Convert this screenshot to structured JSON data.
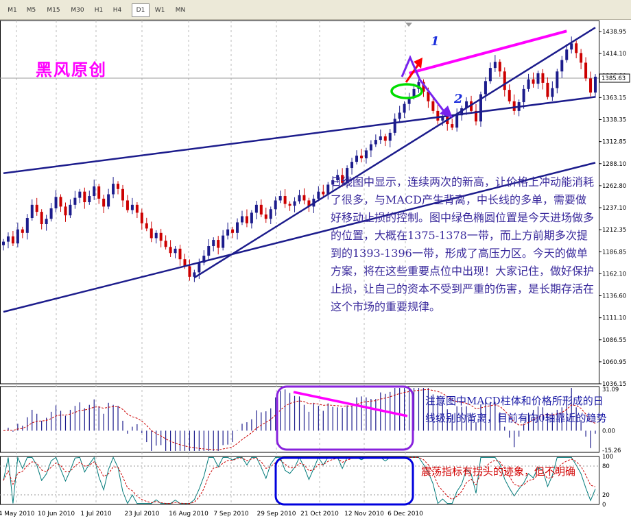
{
  "toolbar": {
    "timeframes": [
      "M1",
      "M5",
      "M15",
      "M30",
      "H1",
      "H4",
      "D1",
      "W1",
      "MN"
    ],
    "active": "D1"
  },
  "title_logo": "黑风原创",
  "annotations": {
    "wave_1": "1",
    "wave_2": "2",
    "main_note": "日线图中显示，连续两次的新高，让价格上冲动能消耗了很多，与MACD产生背离，中长线的多单，需要做好移动止损的控制。图中绿色椭圆位置是今天进场做多的位置，大概在1375-1378一带，而上方前期多次提到的1393-1396一带，形成了高压力区。今天的做单方案，将在这些重要点位中出现！大家记住，做好保护止损，让自己的资本不受到严重的伤害，是长期存活在这个市场的重要规律。",
    "macd_note": "注意图中MACD柱体和价格所形成的日线级别的背离，目前有向0轴靠近的趋势",
    "osc_note": "震荡指标有拐头的迹象，但不明确"
  },
  "colors": {
    "bull": "#1c1c8c",
    "bear": "#cc0000",
    "trendline": "#1c1c8c",
    "divergence": "#ff00ff",
    "entry_ellipse": "#00dd00",
    "macd_box": "#8822dd",
    "osc_box": "#0000dd",
    "arrow_up": "#ff0000",
    "arrow_down": "#7722ee"
  },
  "chart_data": [
    {
      "type": "candlestick",
      "ylim": [
        1036.0,
        1450.0
      ],
      "yticks": [
        "1438.95",
        "1414.10",
        "1388.80",
        "1363.15",
        "1338.35",
        "1312.85",
        "1288.10",
        "1262.80",
        "1237.10",
        "1212.35",
        "1186.85",
        "1162.10",
        "1136.60",
        "1111.10",
        "1086.55",
        "1060.95",
        "1036.15"
      ],
      "current_price": "1385.63",
      "xticks": [
        "4 May 2010",
        "10 Jun 2010",
        "1 Jul 2010",
        "23 Jul 2010",
        "16 Aug 2010",
        "7 Sep 2010",
        "29 Sep 2010",
        "21 Oct 2010",
        "12 Nov 2010",
        "6 Dec 2010"
      ],
      "close": [
        1198,
        1204,
        1196,
        1212,
        1208,
        1225,
        1240,
        1232,
        1218,
        1224,
        1236,
        1249,
        1238,
        1228,
        1240,
        1248,
        1255,
        1243,
        1250,
        1261,
        1247,
        1238,
        1252,
        1264,
        1258,
        1245,
        1234,
        1240,
        1231,
        1219,
        1213,
        1202,
        1208,
        1199,
        1192,
        1185,
        1190,
        1178,
        1170,
        1158,
        1163,
        1174,
        1182,
        1193,
        1200,
        1191,
        1205,
        1212,
        1208,
        1220,
        1227,
        1219,
        1231,
        1240,
        1229,
        1224,
        1235,
        1245,
        1250,
        1241,
        1239,
        1244,
        1251,
        1245,
        1238,
        1247,
        1255,
        1252,
        1263,
        1268,
        1274,
        1265,
        1282,
        1289,
        1296,
        1293,
        1302,
        1309,
        1314,
        1318,
        1313,
        1322,
        1338,
        1345,
        1355,
        1363,
        1372,
        1380,
        1369,
        1358,
        1347,
        1336,
        1341,
        1332,
        1328,
        1342,
        1350,
        1358,
        1347,
        1335,
        1366,
        1381,
        1396,
        1403,
        1392,
        1371,
        1358,
        1347,
        1357,
        1372,
        1383,
        1378,
        1390,
        1379,
        1363,
        1373,
        1392,
        1405,
        1417,
        1424,
        1413,
        1402,
        1384,
        1368,
        1386
      ],
      "trendlines_price": [
        {
          "name": "channel-lower",
          "from_index": 0,
          "from_price": 1276,
          "to_index": 124,
          "to_price": 1363
        },
        {
          "name": "support-rising",
          "from_index": 40,
          "from_price": 1157,
          "to_index": 124,
          "to_price": 1442
        },
        {
          "name": "long-channel-bottom",
          "from_index": 0,
          "from_price": 1118,
          "to_index": 124,
          "to_price": 1288
        },
        {
          "name": "price-divergence-line",
          "from_index": 85,
          "from_price": 1390,
          "to_index": 118,
          "to_price": 1438
        }
      ]
    },
    {
      "type": "histogram+line",
      "name": "MACD",
      "ylim": [
        -15.26,
        31.09
      ],
      "yticks": [
        "31.09",
        "0.00",
        "-15.26"
      ]
    },
    {
      "type": "line",
      "name": "Stochastic",
      "ylim": [
        0,
        100
      ],
      "yticks": [
        "100",
        "80",
        "20",
        "0"
      ]
    }
  ]
}
